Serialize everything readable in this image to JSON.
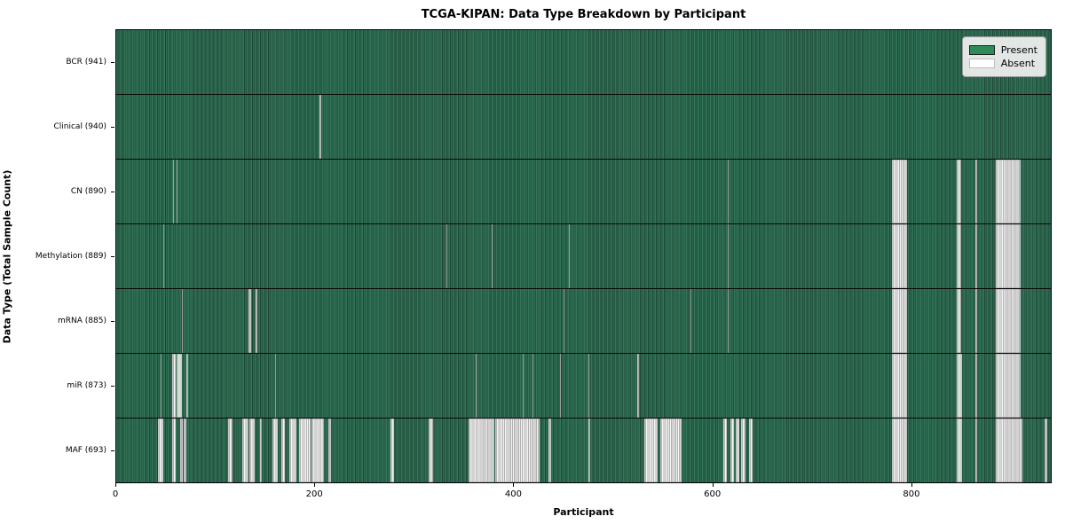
{
  "title": "TCGA-KIPAN: Data Type Breakdown by Participant",
  "x_axis_label": "Participant",
  "y_axis_label": "Data Type (Total Sample Count)",
  "legend": {
    "present_label": "Present",
    "absent_label": "Absent"
  },
  "colors": {
    "present": "#2e8b57",
    "absent": "#ffffff",
    "row_separator": "#000000",
    "plot_border": "#000000",
    "legend_background": "#f2f2f2"
  },
  "chart_data": {
    "type": "heatmap",
    "title": "TCGA-KIPAN: Data Type Breakdown by Participant",
    "xlabel": "Participant",
    "ylabel": "Data Type (Total Sample Count)",
    "legend_entries": [
      "Present",
      "Absent"
    ],
    "legend_position": "upper right",
    "grid": false,
    "x_range": [
      0,
      941
    ],
    "x_ticks": [
      0,
      200,
      400,
      600,
      800
    ],
    "total_participants": 941,
    "rows": [
      {
        "name": "BCR",
        "label": "BCR (941)",
        "present_count": 941,
        "absent_ranges": []
      },
      {
        "name": "Clinical",
        "label": "Clinical (940)",
        "present_count": 940,
        "absent_ranges": [
          [
            205,
            206
          ]
        ]
      },
      {
        "name": "CN",
        "label": "CN (890)",
        "present_count": 890,
        "absent_ranges": [
          [
            57,
            58
          ],
          [
            61,
            62
          ],
          [
            616,
            617
          ],
          [
            781,
            796
          ],
          [
            846,
            851
          ],
          [
            865,
            867
          ],
          [
            886,
            911
          ]
        ]
      },
      {
        "name": "Methylation",
        "label": "Methylation (889)",
        "present_count": 889,
        "absent_ranges": [
          [
            47,
            48
          ],
          [
            332,
            333
          ],
          [
            378,
            379
          ],
          [
            456,
            457
          ],
          [
            616,
            617
          ],
          [
            781,
            796
          ],
          [
            846,
            851
          ],
          [
            865,
            867
          ],
          [
            886,
            911
          ]
        ]
      },
      {
        "name": "mRNA",
        "label": "mRNA (885)",
        "present_count": 885,
        "absent_ranges": [
          [
            66,
            67
          ],
          [
            133,
            136
          ],
          [
            140,
            142
          ],
          [
            450,
            451
          ],
          [
            578,
            579
          ],
          [
            616,
            617
          ],
          [
            781,
            796
          ],
          [
            846,
            851
          ],
          [
            865,
            867
          ],
          [
            886,
            911
          ]
        ]
      },
      {
        "name": "miR",
        "label": "miR (873)",
        "present_count": 873,
        "absent_ranges": [
          [
            45,
            46
          ],
          [
            56,
            60
          ],
          [
            61,
            66
          ],
          [
            71,
            72
          ],
          [
            160,
            161
          ],
          [
            362,
            363
          ],
          [
            409,
            410
          ],
          [
            419,
            420
          ],
          [
            447,
            448
          ],
          [
            475,
            476
          ],
          [
            525,
            526
          ],
          [
            781,
            796
          ],
          [
            846,
            852
          ],
          [
            865,
            867
          ],
          [
            886,
            911
          ]
        ]
      },
      {
        "name": "MAF",
        "label": "MAF (693)",
        "present_count": 693,
        "absent_ranges": [
          [
            42,
            47
          ],
          [
            56,
            60
          ],
          [
            64,
            67
          ],
          [
            68,
            71
          ],
          [
            113,
            117
          ],
          [
            127,
            133
          ],
          [
            134,
            139
          ],
          [
            145,
            147
          ],
          [
            157,
            163
          ],
          [
            166,
            170
          ],
          [
            174,
            181
          ],
          [
            184,
            196
          ],
          [
            197,
            209
          ],
          [
            214,
            216
          ],
          [
            276,
            280
          ],
          [
            315,
            319
          ],
          [
            355,
            381
          ],
          [
            382,
            426
          ],
          [
            435,
            438
          ],
          [
            475,
            477
          ],
          [
            532,
            545
          ],
          [
            548,
            569
          ],
          [
            611,
            615
          ],
          [
            618,
            622
          ],
          [
            624,
            627
          ],
          [
            629,
            634
          ],
          [
            637,
            641
          ],
          [
            781,
            796
          ],
          [
            846,
            852
          ],
          [
            865,
            867
          ],
          [
            886,
            912
          ],
          [
            935,
            937
          ]
        ]
      }
    ]
  }
}
